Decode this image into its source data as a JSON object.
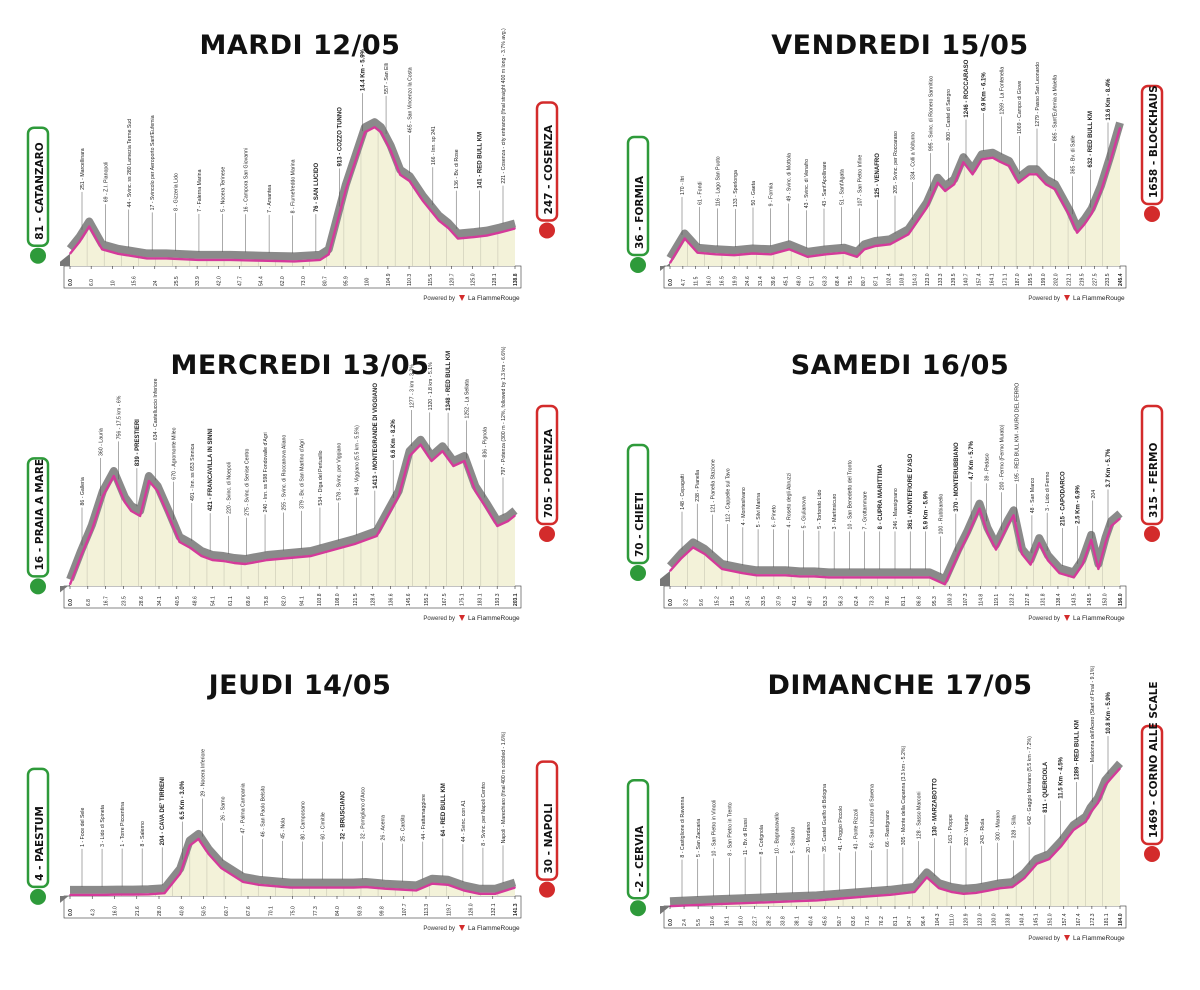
{
  "page": {
    "brand_prefix": "Powered by",
    "brand_name": "La FlammeRouge"
  },
  "chart_data": [
    {
      "type": "area",
      "title": "MARDI 12/05",
      "start": "81 - CATANZARO",
      "finish": "247 - COSENZA",
      "x_range": [
        0,
        138.8
      ],
      "y_range": [
        0,
        1000
      ],
      "x": [
        0,
        3,
        6,
        10,
        15,
        24,
        30,
        40,
        50,
        60,
        70,
        78,
        80.7,
        86,
        92,
        95,
        97,
        100,
        103,
        106,
        110,
        115,
        118,
        121,
        126,
        130,
        134,
        138.8
      ],
      "y": [
        81,
        160,
        260,
        110,
        80,
        50,
        50,
        40,
        40,
        35,
        30,
        40,
        76,
        500,
        880,
        913,
        880,
        760,
        600,
        557,
        430,
        300,
        250,
        180,
        190,
        200,
        220,
        247
      ],
      "x_ticks": [
        "0.0",
        "6.0",
        "10",
        "15.6",
        "24",
        "25.5",
        "33.9",
        "42.0",
        "47.7",
        "54.4",
        "62.0",
        "73.0",
        "80.7",
        "95.9",
        "100",
        "104.9",
        "110.3",
        "115.5",
        "120.7",
        "125.0",
        "128.1",
        "138.8"
      ],
      "annotations": [
        "251 - Marcellinara",
        "69 - Z.I. Pianopoli",
        "44 - Svinc. ss 280 Lamezia Terme Sud",
        "17 - Svincolo per Aeroporto Sant'Eufemia",
        "8 - Gizzeria Lido",
        "7 - Falerna Marina",
        "5 - Nocera Terinese",
        "16 - Campora San Giovanni",
        "7 - Amantea",
        "8 - Fiumefreddo Marina",
        "76 - SAN LUCIDO",
        "913 - COZZO TUNNO",
        "14.4 Km - 5.9%",
        "557 - San Elli",
        "465 - San Vincenzo la Costa",
        "166 - Inn. sp 241",
        "136 - Bv. di Rose",
        "141 - RED BULL KM",
        "221 - Cosenza - city entrance (final straight 400 m long - 3.7% avg.)"
      ]
    },
    {
      "type": "area",
      "title": "VENDREDI 15/05",
      "start": "36 - FORMIA",
      "finish": "1658 - BLOCKHAUS",
      "x_range": [
        0,
        245.4
      ],
      "y_range": [
        0,
        1800
      ],
      "x": [
        0,
        8,
        15,
        25,
        35,
        45,
        55,
        65,
        75,
        85,
        95,
        102,
        106,
        112,
        120,
        130,
        140,
        146,
        150,
        155,
        160,
        165,
        170,
        176,
        180,
        185,
        190,
        196,
        200,
        205,
        210,
        218,
        222,
        226,
        230,
        235,
        240,
        245.4
      ],
      "y": [
        36,
        330,
        160,
        140,
        130,
        150,
        140,
        200,
        110,
        140,
        160,
        110,
        200,
        240,
        260,
        380,
        700,
        1000,
        900,
        980,
        1246,
        1100,
        1280,
        1300,
        1250,
        1200,
        1000,
        1100,
        1100,
        980,
        920,
        600,
        400,
        500,
        632,
        900,
        1250,
        1658
      ],
      "x_ticks": [
        "0.0",
        "4.7",
        "11.5",
        "16.0",
        "16.5",
        "19.9",
        "24.6",
        "31.4",
        "39.6",
        "45.1",
        "48.0",
        "57.1",
        "63.3",
        "68.4",
        "75.5",
        "80.7",
        "87.1",
        "102.4",
        "103.9",
        "114.3",
        "123.0",
        "133.3",
        "139.5",
        "140.7",
        "157.4",
        "164.1",
        "171.1",
        "187.0",
        "195.5",
        "199.0",
        "202.0",
        "212.1",
        "219.5",
        "227.5",
        "233.5",
        "245.4"
      ],
      "annotations": [
        "170 - Itri",
        "61 - Fondi",
        "116 - Lago San Puoto",
        "133 - Sperlonga",
        "50 - Gaeta",
        "9 - Formia",
        "49 - Svinc. di Mottola",
        "43 - Svinc. di Venafro",
        "43 - Sant'Apollinare",
        "51 - Sant'Agata",
        "107 - San Pietro Infine",
        "125 - VENAFRO",
        "205 - Svinc. per Roccaraso",
        "334 - Colli a Volturno",
        "995 - Svinc. di Rionero Sannitico",
        "800 - Castel di Sangro",
        "1246 - ROCCARASO",
        "6.9 Km - 6.1%",
        "1269 - La Fontenella",
        "1069 - Campo di Giove",
        "1279 - Passo San Leonardo",
        "865 - Sant'Eufemia a Maiella",
        "365 - Bv. di Salle",
        "632 - RED BULL KM",
        "13.6 Km - 8.4%"
      ]
    },
    {
      "type": "area",
      "title": "MERCREDI 13/05",
      "start": "16 - PRAIA A MARE",
      "finish": "705 - POTENZA",
      "x_range": [
        0,
        203.1
      ],
      "y_range": [
        0,
        1500
      ],
      "x": [
        0,
        5,
        10,
        15,
        20,
        25,
        28,
        32,
        36,
        40,
        45,
        50,
        55,
        60,
        65,
        70,
        75,
        80,
        90,
        100,
        110,
        120,
        130,
        140,
        145,
        150,
        155,
        160,
        165,
        170,
        175,
        180,
        185,
        190,
        195,
        200,
        203.1
      ],
      "y": [
        16,
        300,
        560,
        900,
        1100,
        839,
        750,
        700,
        1050,
        950,
        700,
        440,
        380,
        300,
        260,
        250,
        230,
        220,
        260,
        280,
        300,
        360,
        420,
        500,
        700,
        900,
        1300,
        1413,
        1250,
        1348,
        1200,
        1250,
        950,
        780,
        600,
        650,
        705
      ],
      "x_ticks": [
        "0.0",
        "6.8",
        "16.7",
        "23.5",
        "28.6",
        "34.1",
        "40.5",
        "48.6",
        "54.1",
        "61.1",
        "69.6",
        "75.8",
        "82.0",
        "94.1",
        "103.8",
        "108.0",
        "121.5",
        "128.4",
        "136.6",
        "145.6",
        "155.2",
        "167.5",
        "175.1",
        "183.1",
        "193.3",
        "203.1"
      ],
      "annotations": [
        "86 - Galleria",
        "360 - Lauria",
        "756 - 17.5 km - 6%",
        "839 - PRESTIERI",
        "634 - Castelluccio Inferiore",
        "670 - Agromonte Mileo",
        "491 - Inn. ss 653 Sinnica",
        "421 - FRANCAVILLA IN SINNI",
        "220 - Svinc. di Noepoli",
        "275 - Svinc. di Senise Centro",
        "240 - Inn. ss 598 Fondovalle d'Agri",
        "255 - Svinc. di Roccanova Aliano",
        "379 - Bv. di San Martino d'Agri",
        "534 - Diga del Pertusillo",
        "578 - Svinc. per Viggiano",
        "948 - Viggiano (5.5 km - 5.5%)",
        "1413 - MONTEGRANDE DI VIGGIANO",
        "6.6 Km - 8.2%",
        "1277 - 3 km - 3.3%",
        "1320 - 1.8 km - 5.1%",
        "1348 - RED BULL KM",
        "1252 - La Sellata",
        "836 - Pignola",
        "797 - Potenza (300 m - 12%, followed by 1.3 km - 6.6%)"
      ]
    },
    {
      "type": "area",
      "title": "SAMEDI 16/05",
      "start": "70 - CHIETI",
      "finish": "315 - FERMO",
      "x_range": [
        0,
        156.0
      ],
      "y_range": [
        0,
        700
      ],
      "x": [
        0,
        4,
        8,
        12,
        18,
        25,
        30,
        35,
        40,
        45,
        50,
        55,
        60,
        65,
        70,
        75,
        80,
        85,
        90,
        95.3,
        100,
        103,
        107.3,
        110,
        113,
        117,
        119.1,
        122,
        125,
        128,
        131,
        135,
        140,
        143,
        146,
        148.5,
        151,
        153,
        156
      ],
      "y": [
        70,
        130,
        180,
        150,
        80,
        60,
        50,
        50,
        50,
        45,
        45,
        40,
        40,
        40,
        40,
        40,
        40,
        40,
        40,
        8,
        150,
        230,
        361,
        250,
        170,
        280,
        330,
        150,
        100,
        200,
        120,
        60,
        40,
        100,
        215,
        80,
        204,
        280,
        315
      ],
      "x_ticks": [
        "0.0",
        "3.2",
        "9.6",
        "15.2",
        "19.5",
        "24.5",
        "33.5",
        "37.9",
        "41.6",
        "48.7",
        "53.3",
        "56.3",
        "62.4",
        "73.3",
        "78.6",
        "81.1",
        "86.8",
        "95.3",
        "100.3",
        "107.3",
        "114.8",
        "119.1",
        "123.2",
        "127.8",
        "131.8",
        "138.4",
        "143.5",
        "148.5",
        "153.0",
        "156.0"
      ],
      "annotations": [
        "148 - Cepagatti",
        "238 - Pianella",
        "121 - Pianella Stazione",
        "112 - Cappelle sul Tavo",
        "4 - Montesilvano",
        "5 - Silvi Marina",
        "6 - Pineto",
        "4 - Roseto degli Abruzzi",
        "5 - Giulianova",
        "5 - Tortoreto Lido",
        "3 - Martinsicuro",
        "10 - San Benedetto del Tronto",
        "7 - Grottammare",
        "8 - CUPRA MARITTIMA",
        "246 - Massignano",
        "361 - MONTEFIORE D'ASO",
        "5.9 Km - 5.9%",
        "100 - Rubbianello",
        "370 - MONTERUBBIANO",
        "4.7 Km - 5.7%",
        "39 - Pedaso",
        "200 - Fermo (Fermo Murato)",
        "195 - RED BULL KM - MURO DEL FERRO",
        "48 - San Marco",
        "3 - Lido di Fermo",
        "215 - CAPODARCO",
        "2.5 Km - 6.9%",
        "204",
        "3.7 Km - 5.7%"
      ]
    },
    {
      "type": "area",
      "title": "JEUDI 14/05",
      "start": "4 - PAESTUM",
      "finish": "30 - NAPOLI",
      "x_range": [
        0,
        141.3
      ],
      "y_range": [
        0,
        500
      ],
      "x": [
        0,
        5,
        10,
        15,
        20,
        25,
        30,
        35,
        38,
        40.8,
        44,
        48,
        55,
        60,
        70,
        80,
        90,
        93.9,
        100,
        110,
        115,
        120,
        125,
        130,
        135,
        141.3
      ],
      "y": [
        4,
        4,
        4,
        5,
        5,
        6,
        10,
        80,
        180,
        204,
        150,
        100,
        50,
        40,
        30,
        30,
        30,
        32,
        26,
        20,
        44,
        40,
        20,
        8,
        8,
        30
      ],
      "x_ticks": [
        "0.0",
        "4.3",
        "16.0",
        "21.6",
        "28.0",
        "40.8",
        "50.5",
        "60.7",
        "67.6",
        "70.1",
        "75.0",
        "77.3",
        "84.0",
        "93.9",
        "99.8",
        "107.7",
        "113.3",
        "119.7",
        "126.0",
        "132.1",
        "141.3"
      ],
      "annotations": [
        "1 - Foce del Sele",
        "3 - Lido di Spineta",
        "1 - Torre Piccentina",
        "8 - Salerno",
        "204 - CAVA DE' TIRRENI",
        "6.5 Km - 3.0%",
        "29 - Nocera Inferiore",
        "26 - Sarno",
        "47 - Palma Campania",
        "46 - San Paolo Belsito",
        "45 - Nola",
        "80 - Camposano",
        "60 - Cimitile",
        "32 - BRUSCIANO",
        "32 - Pomigliano d'Arco",
        "26 - Acerra",
        "25 - Cardito",
        "44 - Frattamaggiore",
        "64 - RED BULL KM",
        "44 - Svinc. con A1",
        "8 - Svinc. per Napoli Centro",
        "Napoli - Marechiaro (final 400 m cobbled - 1.6%)"
      ]
    },
    {
      "type": "area",
      "title": "DIMANCHE 17/05",
      "start": "-2 - CERVIA",
      "finish": "1469 - CORNO ALLE SCALE",
      "x_range": [
        0,
        184.0
      ],
      "y_range": [
        0,
        1600
      ],
      "x": [
        0,
        10,
        20,
        30,
        40,
        50,
        60,
        70,
        80,
        90,
        100,
        105,
        110,
        115,
        120,
        125,
        130,
        135,
        140,
        145,
        150,
        155,
        160,
        165,
        170,
        172,
        175,
        178,
        180,
        184
      ],
      "y": [
        -2,
        10,
        20,
        30,
        40,
        50,
        60,
        80,
        100,
        120,
        150,
        305,
        190,
        150,
        130,
        140,
        163,
        190,
        202,
        300,
        450,
        500,
        640,
        811,
        900,
        1000,
        1100,
        1289,
        1350,
        1469
      ],
      "x_ticks": [
        "0.0",
        "2.4",
        "5.5",
        "10.6",
        "16.1",
        "18.0",
        "22.7",
        "28.2",
        "33.8",
        "38.1",
        "40.4",
        "45.6",
        "50.7",
        "63.6",
        "71.6",
        "76.2",
        "81.1",
        "94.7",
        "96.4",
        "104.3",
        "111.0",
        "120.9",
        "123.0",
        "130.0",
        "133.8",
        "140.4",
        "145.1",
        "151.0",
        "157.4",
        "167.4",
        "172.3",
        "181.1",
        "184.0"
      ],
      "annotations": [
        "8 - Castiglione di Ravenna",
        "5 - San Zaccaria",
        "10 - San Pietro in Vincoli",
        "8 - San Pietro in Trento",
        "11 - Bv. di Russi",
        "8 - Cotignola",
        "10 - Bagnacavallo",
        "5 - Solarolo",
        "20 - Mordano",
        "35 - Castel Guelfo di Bologna",
        "41 - Poggio Piccolo",
        "43 - Ponte Rizzoli",
        "60 - San Lazzaro di Savena",
        "66 - Rastignano",
        "305 - Monte della Capanna (3.3 km - 5.2%)",
        "128 - Sasso Marconi",
        "130 - MARZABOTTO",
        "163 - Pioppe",
        "202 - Vergato",
        "243 - Riola",
        "300 - Marano",
        "328 - Silla",
        "642 - Gaggio Montano (5.5 km - 7.2%)",
        "811 - QUERCIOLA",
        "11.5 Km - 4.5%",
        "1289 - RED BULL KM",
        "Madonna dell'Acero (Start of Final - 9.1%)",
        "10.8 Km - 5.9%"
      ]
    }
  ]
}
